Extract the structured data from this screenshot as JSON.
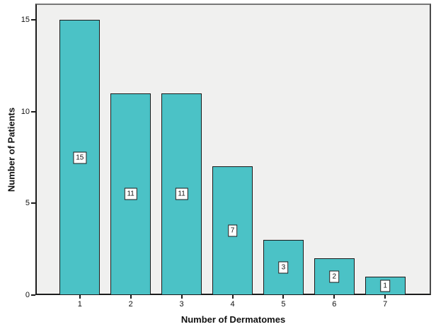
{
  "chart_data": {
    "type": "bar",
    "title": "",
    "xlabel": "Number of Dermatomes",
    "ylabel": "Number of Patients",
    "categories": [
      "1",
      "2",
      "3",
      "4",
      "5",
      "6",
      "7"
    ],
    "values": [
      15,
      11,
      11,
      7,
      3,
      2,
      1
    ],
    "bar_labels": [
      "15",
      "11",
      "11",
      "7",
      "3",
      "2",
      "1"
    ],
    "yticks": [
      0,
      5,
      10,
      15
    ],
    "ylim": [
      0,
      15.9
    ],
    "grid": false,
    "legend": "none",
    "colors": {
      "bar_fill": "#4BC2C6",
      "bar_border": "#1A1A1A",
      "plot_bg": "#F0F0EF",
      "axis": "#1C1C1C",
      "label_box_bg": "#FFFFFF",
      "label_box_border": "#1A1A1A",
      "outer_bg": "#FFFFFF"
    }
  }
}
